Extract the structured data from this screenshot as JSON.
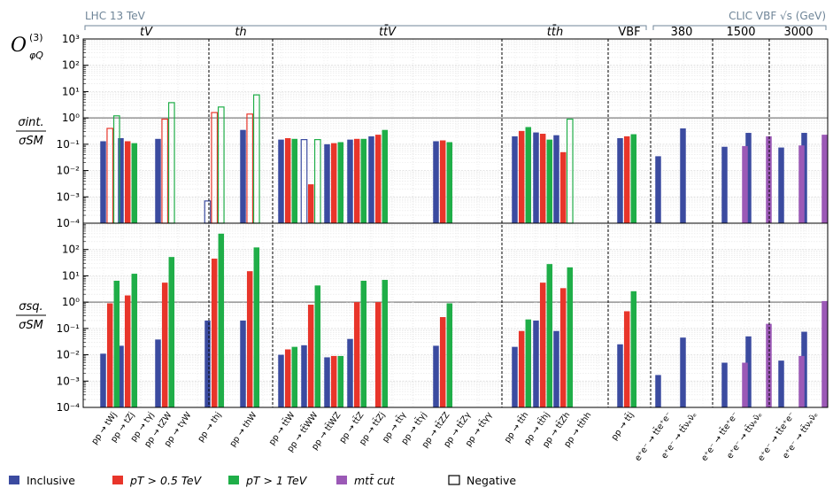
{
  "chart_data": {
    "type": "bar",
    "y_scale": "log",
    "ylim": [
      0.0001,
      1000
    ],
    "grid": true,
    "legend_placement": "bottom",
    "operator_label": "O",
    "operator_sup": "(3)",
    "operator_sub": "φQ",
    "lhc_label": "LHC 13 TeV",
    "clic_label": "CLIC VBF √s (GeV)",
    "group_labels": [
      "tV",
      "th",
      "tt̄V",
      "tt̄h",
      "VBF",
      "380",
      "1500",
      "3000"
    ],
    "panels": [
      {
        "name": "int",
        "ylabel_num": "σint.",
        "ylabel_den": "σSM"
      },
      {
        "name": "sq",
        "ylabel_num": "σsq.",
        "ylabel_den": "σSM"
      }
    ],
    "y_ticks": [
      "10⁻⁴",
      "10⁻³",
      "10⁻²",
      "10⁻¹",
      "10⁰",
      "10¹",
      "10²",
      "10³"
    ],
    "categories": [
      "pp → tWj",
      "pp → tZj",
      "pp → tγj",
      "pp → tZW",
      "pp → tγW",
      "pp → thj",
      "pp → thW",
      "pp → tt̄W",
      "pp → tt̄WW",
      "pp → tt̄WZ",
      "pp → tt̄Z",
      "pp → tt̄Zj",
      "pp → tt̄γ",
      "pp → tt̄γj",
      "pp → tt̄ZZ",
      "pp → tt̄Zγ",
      "pp → tt̄γγ",
      "pp → tt̄h",
      "pp → tt̄hj",
      "pp → tt̄Zh",
      "pp → tt̄hh",
      "pp → tt̄j",
      "e⁺e⁻ → tt̄e⁺e⁻",
      "e⁺e⁻ → tt̄νₑν̄ₑ",
      "e⁺e⁻ → tt̄e⁺e⁻",
      "e⁺e⁻ → tt̄νₑν̄ₑ",
      "e⁺e⁻ → tt̄e⁺e⁻",
      "e⁺e⁻ → tt̄νₑν̄ₑ"
    ],
    "series": [
      {
        "name": "Inclusive",
        "color": "#3b4ba0",
        "int": [
          0.13,
          0.17,
          null,
          0.16,
          null,
          0.0007,
          0.35,
          0.15,
          0.15,
          0.1,
          0.15,
          0.2,
          null,
          null,
          0.13,
          null,
          null,
          0.2,
          0.28,
          0.22,
          null,
          0.17,
          0.035,
          0.4,
          0.08,
          0.27,
          0.075,
          0.27
        ],
        "int_neg": [
          false,
          false,
          false,
          false,
          false,
          true,
          false,
          false,
          true,
          false,
          false,
          false,
          false,
          false,
          false,
          false,
          false,
          false,
          false,
          false,
          false,
          false,
          false,
          false,
          false,
          false,
          false,
          false
        ],
        "sq": [
          0.011,
          0.022,
          null,
          0.038,
          null,
          0.2,
          0.2,
          0.01,
          0.023,
          0.008,
          0.04,
          null,
          null,
          null,
          0.022,
          null,
          null,
          0.02,
          0.2,
          0.08,
          null,
          0.025,
          0.0017,
          0.045,
          0.005,
          0.05,
          0.006,
          0.075
        ]
      },
      {
        "name": "p_T > 0.5 TeV",
        "color": "#e8352a",
        "int": [
          0.4,
          0.13,
          null,
          0.9,
          null,
          1.6,
          1.4,
          0.17,
          0.003,
          0.11,
          0.16,
          0.23,
          null,
          null,
          0.14,
          null,
          null,
          0.32,
          0.25,
          0.05,
          null,
          0.2,
          null,
          null,
          null,
          null,
          null,
          null
        ],
        "int_neg": [
          true,
          false,
          false,
          true,
          false,
          true,
          true,
          false,
          false,
          false,
          false,
          false,
          false,
          false,
          false,
          false,
          false,
          false,
          false,
          false,
          false,
          false,
          false,
          false,
          false,
          false,
          false,
          false
        ],
        "sq": [
          0.9,
          1.8,
          null,
          5.5,
          null,
          45,
          15,
          0.016,
          0.8,
          0.009,
          1.0,
          1.0,
          null,
          null,
          0.27,
          null,
          null,
          0.08,
          5.5,
          3.4,
          null,
          0.45,
          null,
          null,
          null,
          null,
          null,
          null
        ]
      },
      {
        "name": "p_T > 1 TeV",
        "color": "#1fae48",
        "int": [
          1.2,
          0.11,
          null,
          3.8,
          null,
          2.6,
          7.5,
          0.16,
          0.15,
          0.12,
          0.16,
          0.35,
          null,
          null,
          0.12,
          null,
          null,
          0.45,
          0.15,
          0.9,
          null,
          0.24,
          null,
          null,
          null,
          null,
          null,
          null
        ],
        "int_neg": [
          true,
          false,
          false,
          true,
          false,
          true,
          true,
          false,
          true,
          false,
          false,
          false,
          false,
          false,
          false,
          false,
          false,
          false,
          false,
          true,
          false,
          false,
          false,
          false,
          false,
          false,
          false,
          false
        ],
        "sq": [
          6.5,
          12,
          null,
          52,
          null,
          400,
          120,
          0.02,
          4.3,
          0.009,
          6.5,
          7,
          null,
          null,
          0.9,
          null,
          null,
          0.22,
          28,
          21,
          null,
          2.6,
          null,
          null,
          null,
          null,
          null,
          null
        ]
      },
      {
        "name": "m_tt̄ cut",
        "color": "#9b59b6",
        "int": [
          null,
          null,
          null,
          null,
          null,
          null,
          null,
          null,
          null,
          null,
          null,
          null,
          null,
          null,
          null,
          null,
          null,
          null,
          null,
          null,
          null,
          null,
          null,
          null,
          0.085,
          0.2,
          0.09,
          0.23
        ],
        "int_neg": [
          false,
          false,
          false,
          false,
          false,
          false,
          false,
          false,
          false,
          false,
          false,
          false,
          false,
          false,
          false,
          false,
          false,
          false,
          false,
          false,
          false,
          false,
          false,
          false,
          false,
          false,
          false,
          false
        ],
        "sq": [
          null,
          null,
          null,
          null,
          null,
          null,
          null,
          null,
          null,
          null,
          null,
          null,
          null,
          null,
          null,
          null,
          null,
          null,
          null,
          null,
          null,
          null,
          null,
          null,
          0.005,
          0.15,
          0.009,
          1.1
        ]
      }
    ],
    "legend": [
      {
        "label": "Inclusive",
        "color": "#3b4ba0",
        "style": "filled"
      },
      {
        "label": "pT > 0.5 TeV",
        "color": "#e8352a",
        "style": "filled"
      },
      {
        "label": "pT > 1 TeV",
        "color": "#1fae48",
        "style": "filled"
      },
      {
        "label": "mtt̄ cut",
        "color": "#9b59b6",
        "style": "filled"
      },
      {
        "label": "Negative",
        "color": "#000000",
        "style": "outline"
      }
    ]
  }
}
